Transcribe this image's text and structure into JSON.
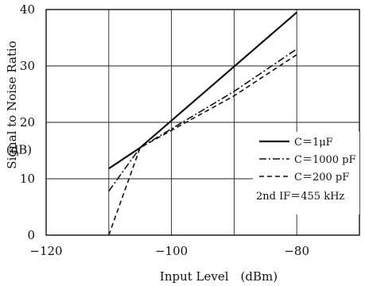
{
  "chart_data": {
    "type": "line",
    "title": "",
    "xlabel": "Input Level (dBm)",
    "ylabel": "Signal to Noise Ratio",
    "ylabel_unit": "(dB)",
    "xlim": [
      -120,
      -70
    ],
    "ylim": [
      0,
      40
    ],
    "xticks": [
      -120,
      -100,
      -80
    ],
    "xtick_labels": [
      "−120",
      "−100",
      "−80"
    ],
    "yticks": [
      0,
      10,
      20,
      30,
      40
    ],
    "ytick_labels": [
      "0",
      "10",
      "20",
      "30",
      "40"
    ],
    "grid": true,
    "legend_position": "right",
    "annotation": "2nd IF＝455 kHz",
    "series": [
      {
        "name": "C＝1μF",
        "style": "solid",
        "x": [
          -110,
          -105,
          -80
        ],
        "y": [
          11.8,
          15.5,
          39.5
        ]
      },
      {
        "name": "C＝1000 pF",
        "style": "dashdot",
        "x": [
          -110,
          -105,
          -90,
          -80
        ],
        "y": [
          7.8,
          15.5,
          25.5,
          33
        ]
      },
      {
        "name": "C＝200 pF",
        "style": "dashed",
        "x": [
          -110,
          -105,
          -90,
          -80
        ],
        "y": [
          0,
          15.5,
          24.7,
          32
        ]
      }
    ]
  }
}
